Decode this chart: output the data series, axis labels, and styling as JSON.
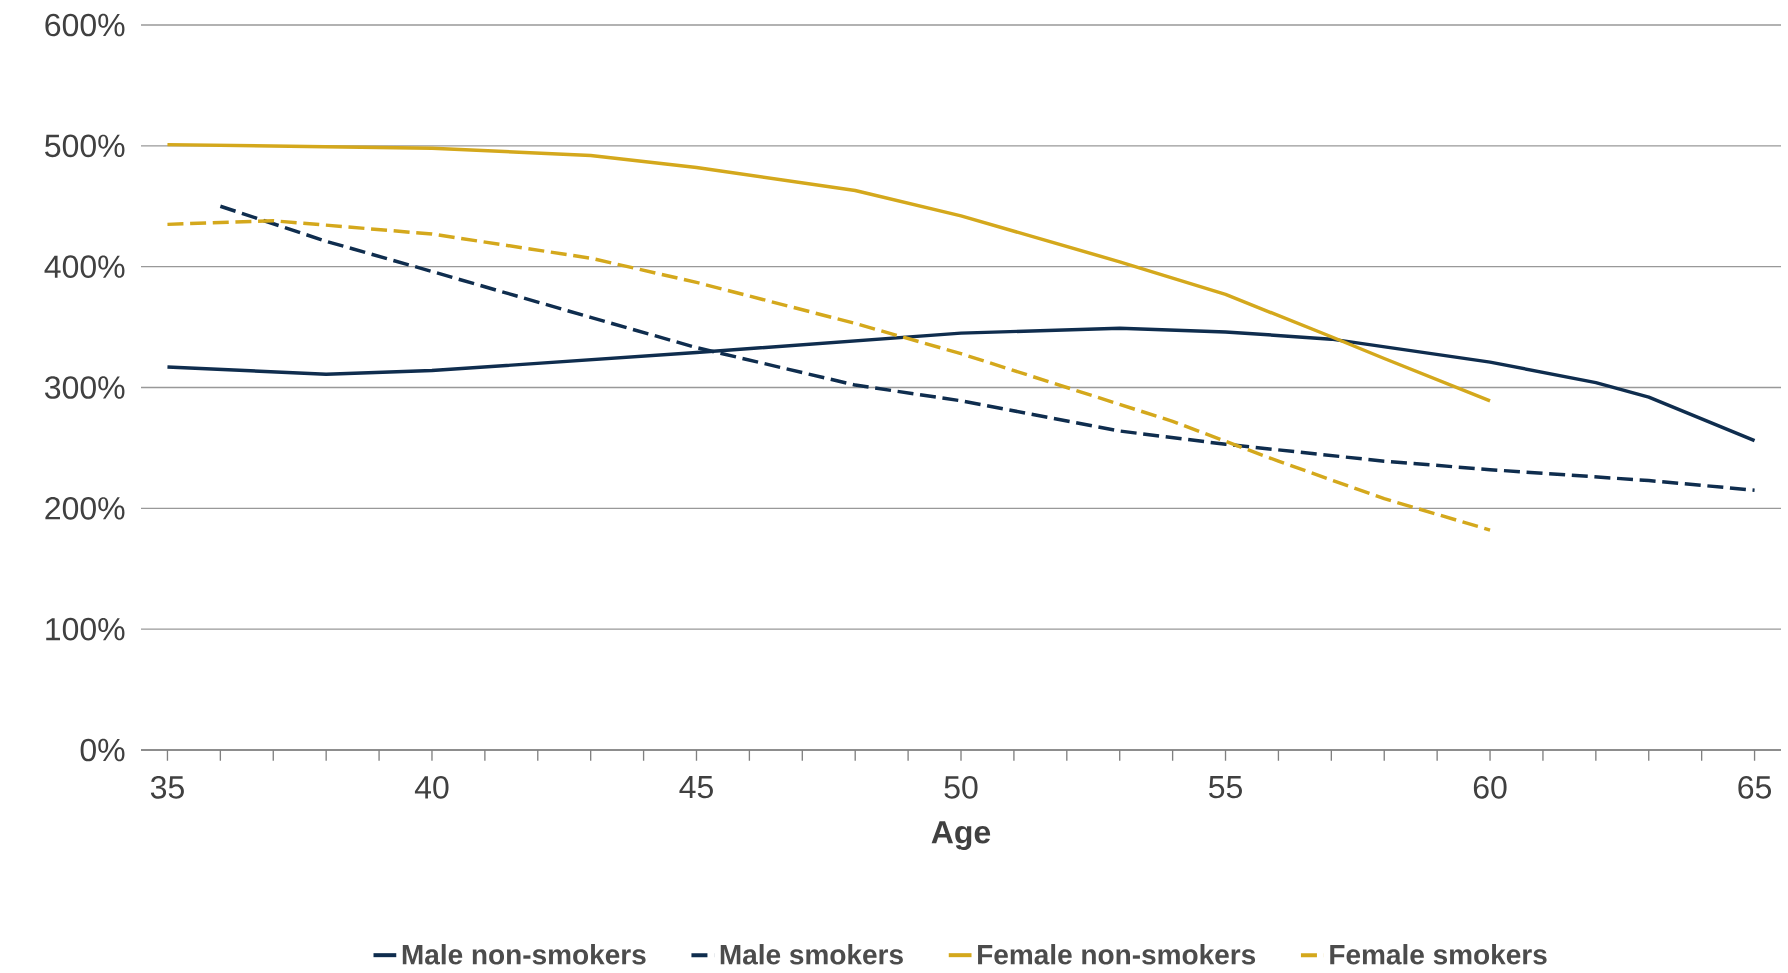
{
  "chart_data": {
    "type": "line",
    "xlabel": "Age",
    "x": [
      35,
      38,
      40,
      45,
      50,
      53,
      55,
      57,
      60,
      62,
      63,
      65
    ],
    "series": [
      {
        "name": "Male non-smokers",
        "color": "#0f2d4e",
        "line_style": "solid",
        "values": [
          317,
          311,
          314,
          329,
          345,
          349,
          346,
          340,
          321,
          304,
          292,
          256
        ]
      },
      {
        "name": "Male smokers",
        "color": "#0f2d4e",
        "line_style": "dashed",
        "x": [
          36,
          38,
          40,
          43,
          45,
          48,
          50,
          53,
          55,
          58,
          60,
          63,
          65
        ],
        "values": [
          450,
          421,
          396,
          358,
          333,
          302,
          289,
          264,
          253,
          239,
          232,
          223,
          215
        ]
      },
      {
        "name": "Female non-smokers",
        "color": "#d4a81c",
        "line_style": "solid",
        "x": [
          35,
          40,
          43,
          45,
          48,
          50,
          53,
          55,
          57,
          58,
          60
        ],
        "values": [
          501,
          498,
          492,
          482,
          463,
          442,
          404,
          377,
          342,
          324,
          289
        ]
      },
      {
        "name": "Female smokers",
        "color": "#d4a81c",
        "line_style": "dashed",
        "x": [
          35,
          37,
          40,
          43,
          45,
          48,
          50,
          52,
          54,
          56,
          58,
          60
        ],
        "values": [
          435,
          438,
          427,
          407,
          387,
          353,
          328,
          300,
          272,
          239,
          208,
          182
        ]
      }
    ],
    "xlim": [
      34.5,
      65.5
    ],
    "xticks": [
      35,
      40,
      45,
      50,
      55,
      60,
      65
    ],
    "ylim": [
      0,
      600
    ],
    "yticks": [
      {
        "value": 0,
        "label": "0%"
      },
      {
        "value": 100,
        "label": "100%"
      },
      {
        "value": 200,
        "label": "200%"
      },
      {
        "value": 300,
        "label": "300%"
      },
      {
        "value": 400,
        "label": "400%"
      },
      {
        "value": 500,
        "label": "500%"
      },
      {
        "value": 600,
        "label": "600%"
      }
    ],
    "grid": "y",
    "legend": "bottom",
    "marker": "none"
  }
}
